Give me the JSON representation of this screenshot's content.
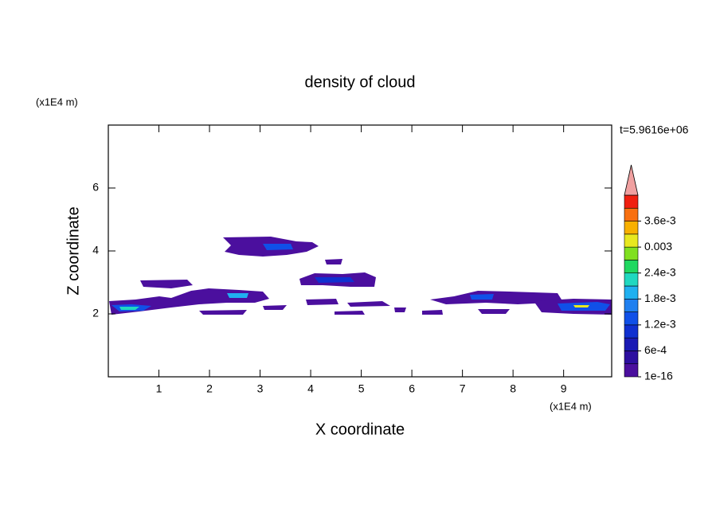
{
  "chart_data": {
    "type": "contour",
    "title": "density of cloud",
    "x_label": "X coordinate",
    "y_label": "Z coordinate",
    "x_unit": "(x1E4 m)",
    "y_unit": "(x1E4 m)",
    "annotation": "t=5.9616e+06",
    "xlim": [
      0,
      9.95
    ],
    "ylim": [
      0,
      8
    ],
    "xticks": [
      1,
      2,
      3,
      4,
      5,
      6,
      7,
      8,
      9
    ],
    "yticks": [
      2,
      4,
      6
    ],
    "colorbar": {
      "clim": [
        0,
        0.0042
      ],
      "ticks": [
        {
          "value": 1e-16,
          "label": "1e-16"
        },
        {
          "value": 0.0006,
          "label": "6e-4"
        },
        {
          "value": 0.0012,
          "label": "1.2e-3"
        },
        {
          "value": 0.0018,
          "label": "1.8e-3"
        },
        {
          "value": 0.0024,
          "label": "2.4e-3"
        },
        0.003,
        {
          "value": 0.0036,
          "label": "3.6e-3"
        }
      ],
      "colors": [
        "#4b0f9e",
        "#2d0fa0",
        "#1a1ab4",
        "#1030d0",
        "#1050e8",
        "#2080f0",
        "#20b0f0",
        "#20d8c0",
        "#20d860",
        "#80e020",
        "#e8e820",
        "#f8b000",
        "#f87010",
        "#f02010"
      ],
      "extend_color": "#f0a0a0"
    }
  }
}
